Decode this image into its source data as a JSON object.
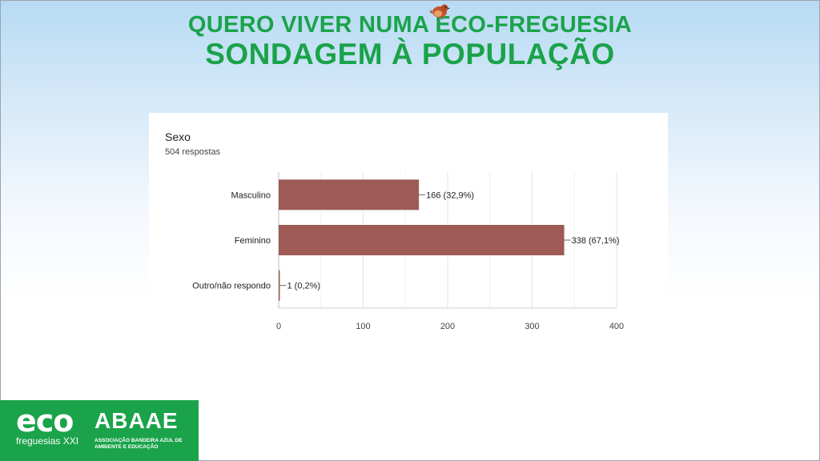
{
  "header": {
    "line1": "QUERO VIVER NUMA ECO-FREGUESIA",
    "line2": "SONDAGEM À POPULAÇÃO"
  },
  "card": {
    "title": "Sexo",
    "subtitle": "504 respostas"
  },
  "chart_data": {
    "type": "bar",
    "orientation": "horizontal",
    "categories": [
      "Masculino",
      "Feminino",
      "Outro/não respondo"
    ],
    "values": [
      166,
      338,
      1
    ],
    "data_labels": [
      "166 (32,9%)",
      "338 (67,1%)",
      "1 (0,2%)"
    ],
    "x_ticks": [
      "0",
      "100",
      "200",
      "300",
      "400"
    ],
    "xlim": [
      0,
      400
    ],
    "grid": true,
    "bar_color": "#9e5a55"
  },
  "logo": {
    "eco": "eco",
    "freguesias": "freguesias XXI",
    "abaae": "ABAAE",
    "abaae_full": "ASSOCIAÇÃO BANDEIRA AZUL DE AMBIENTE E EDUCAÇÃO"
  },
  "colors": {
    "brand_green": "#1aa34a",
    "bar": "#9e5a55"
  }
}
